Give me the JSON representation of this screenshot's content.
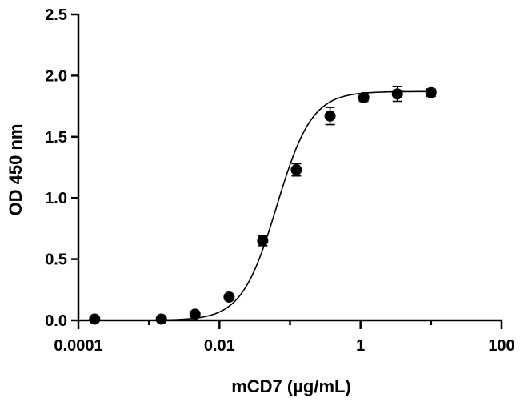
{
  "chart_data": {
    "type": "scatter",
    "title": "",
    "xlabel": "mCD7 (µg/mL)",
    "ylabel": "OD 450 nm",
    "xscale": "log",
    "xlim": [
      0.0001,
      100
    ],
    "ylim": [
      0,
      2.5
    ],
    "x_ticks": [
      0.0001,
      0.01,
      1,
      100
    ],
    "x_tick_labels": [
      "0.0001",
      "0.01",
      "1",
      "100"
    ],
    "y_ticks": [
      0,
      0.5,
      1.0,
      1.5,
      2.0,
      2.5
    ],
    "y_tick_labels": [
      "0.0",
      "0.5",
      "1.0",
      "1.5",
      "2.0",
      "2.5"
    ],
    "grid": false,
    "legend": "none",
    "series": [
      {
        "x": [
          0.00017,
          0.0015,
          0.0045,
          0.0137,
          0.041,
          0.123,
          0.37,
          1.11,
          3.33,
          10
        ],
        "y": [
          0.01,
          0.01,
          0.05,
          0.19,
          0.65,
          1.23,
          1.67,
          1.82,
          1.85,
          1.86
        ],
        "err": [
          0.0,
          0.0,
          0.01,
          0.02,
          0.04,
          0.05,
          0.07,
          0.03,
          0.06,
          0.03
        ]
      }
    ],
    "fit": {
      "model": "4PL",
      "bottom": 0.0,
      "top": 1.87,
      "ec50": 0.065,
      "hill": 1.75,
      "x_range": [
        0.0015,
        10
      ]
    }
  }
}
